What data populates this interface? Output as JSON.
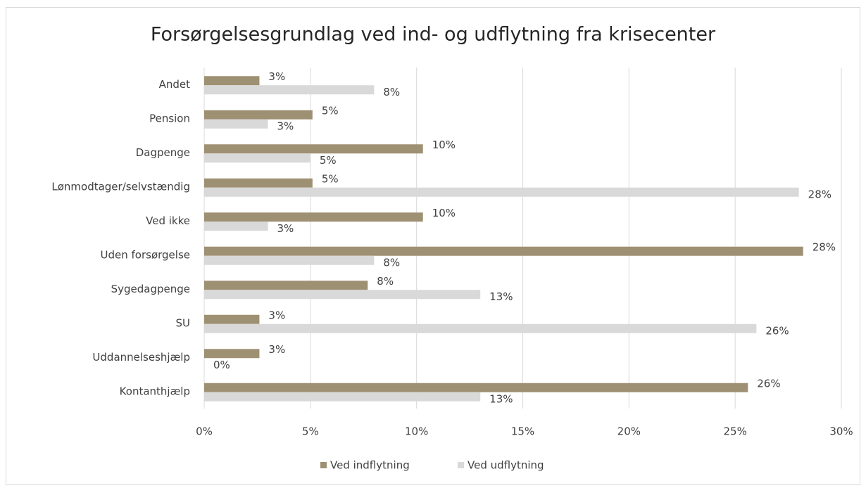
{
  "chart_data": {
    "type": "bar",
    "orientation": "horizontal",
    "title": "Forsørgelsesgrundlag ved ind- og udflytning fra krisecenter",
    "categories": [
      "Andet",
      "Pension",
      "Dagpenge",
      "Lønmodtager/selvstændig",
      "Ved ikke",
      "Uden forsørgelse",
      "Sygedagpenge",
      "SU",
      "Uddannelseshjælp",
      "Kontanthjælp"
    ],
    "series": [
      {
        "name": "Ved indflytning",
        "color": "#9e9072",
        "values": [
          2.6,
          5.1,
          10.3,
          5.1,
          10.3,
          28.2,
          7.7,
          2.6,
          2.6,
          25.6
        ],
        "value_labels": [
          "3%",
          "5%",
          "10%",
          "5%",
          "10%",
          "28%",
          "8%",
          "3%",
          "3%",
          "26%"
        ]
      },
      {
        "name": "Ved udflytning",
        "color": "#d9d9d9",
        "values": [
          8,
          3,
          5,
          28,
          3,
          8,
          13,
          26,
          0,
          13
        ],
        "value_labels": [
          "8%",
          "3%",
          "5%",
          "28%",
          "3%",
          "8%",
          "13%",
          "26%",
          "0%",
          "13%"
        ]
      }
    ],
    "xlim": [
      0,
      30
    ],
    "xticks": [
      {
        "value": 0,
        "label": "0%"
      },
      {
        "value": 5,
        "label": "5%"
      },
      {
        "value": 10,
        "label": "10%"
      },
      {
        "value": 15,
        "label": "15%"
      },
      {
        "value": 20,
        "label": "20%"
      },
      {
        "value": 25,
        "label": "25%"
      },
      {
        "value": 30,
        "label": "30%"
      }
    ],
    "grid": true,
    "legend": "bottom"
  }
}
